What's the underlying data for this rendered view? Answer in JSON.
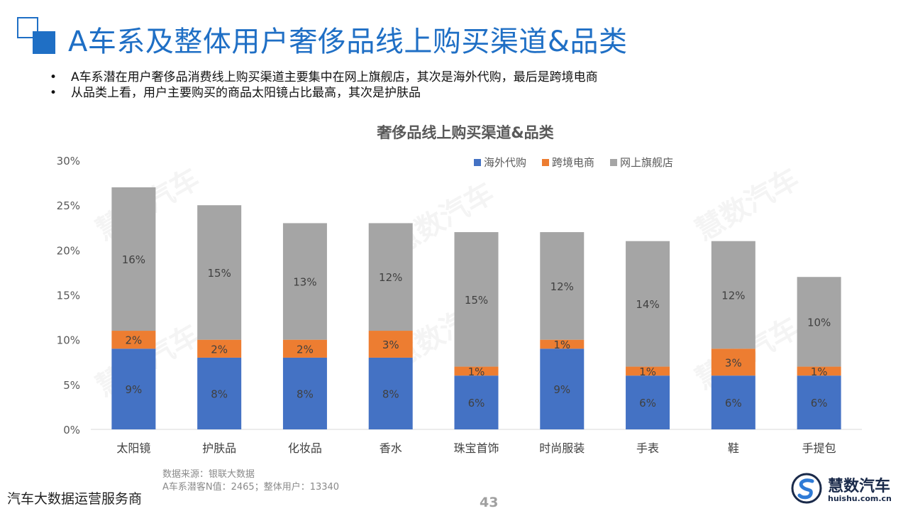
{
  "page": {
    "title": "A车系及整体用户奢侈品线上购买渠道&品类",
    "bullets": [
      "A车系潜在用户奢侈品消费线上购买渠道主要集中在网上旗舰店，其次是海外代购，最后是跨境电商",
      "从品类上看，用户主要购买的商品太阳镜占比最高，其次是护肤品"
    ],
    "bullet_symbol": "•",
    "source_line1": "数据来源：银联大数据",
    "source_line2": "A车系潜客N值：2465；整体用户：13340",
    "company": "汽车大数据运营服务商",
    "page_number": "43",
    "watermark": "慧数汽车",
    "logo": {
      "name": "慧数汽车",
      "url": "huishu.com.cn",
      "icon": "huishu-logo-icon"
    }
  },
  "chart_data": {
    "type": "bar",
    "stacked": true,
    "title": "奢侈品线上购买渠道&品类",
    "categories": [
      "太阳镜",
      "护肤品",
      "化妆品",
      "香水",
      "珠宝首饰",
      "时尚服装",
      "手表",
      "鞋",
      "手提包"
    ],
    "series": [
      {
        "name": "海外代购",
        "color": "#4472c4",
        "values": [
          9,
          8,
          8,
          8,
          6,
          9,
          6,
          6,
          6
        ]
      },
      {
        "name": "跨境电商",
        "color": "#ed7d31",
        "values": [
          2,
          2,
          2,
          3,
          1,
          1,
          1,
          3,
          1
        ]
      },
      {
        "name": "网上旗舰店",
        "color": "#a5a5a5",
        "values": [
          16,
          15,
          13,
          12,
          15,
          12,
          14,
          12,
          10
        ]
      }
    ],
    "ylim": [
      0,
      30
    ],
    "yticks": [
      "0%",
      "5%",
      "10%",
      "15%",
      "20%",
      "25%",
      "30%"
    ],
    "value_suffix": "%",
    "legend_position": "top-right",
    "grid": false
  }
}
